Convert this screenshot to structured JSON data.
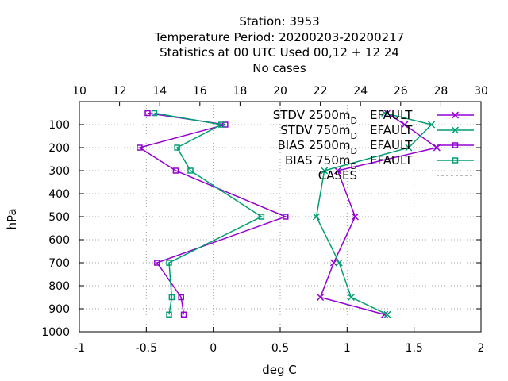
{
  "title_lines": [
    "Station:     3953",
    "Temperature  Period: 20200203-20200217",
    "Statistics at 00 UTC  Used  00,12  + 12 24",
    "No cases"
  ],
  "chart_data": {
    "type": "line",
    "title": "Station:     3953 Temperature  Period: 20200203-20200217 Statistics at 00 UTC  Used  00,12  + 12 24 No cases",
    "xlabel": "deg C",
    "ylabel": "hPa",
    "xlim": [
      -1,
      2
    ],
    "ylim": [
      1000,
      0
    ],
    "x2lim": [
      10,
      30
    ],
    "xticks": [
      -1,
      -0.5,
      0,
      0.5,
      1,
      1.5,
      2
    ],
    "xtick_labels": [
      "-1",
      "-0.5",
      "0",
      "0.5",
      "1",
      "1.5",
      "2"
    ],
    "x2ticks": [
      10,
      12,
      14,
      16,
      18,
      20,
      22,
      24,
      26,
      28,
      30
    ],
    "x2tick_labels": [
      "10",
      "12",
      "14",
      "16",
      "18",
      "20",
      "22",
      "24",
      "26",
      "28",
      "30"
    ],
    "yticks": [
      100,
      200,
      300,
      400,
      500,
      600,
      700,
      800,
      900,
      1000
    ],
    "ytick_labels": [
      "100",
      "200",
      "300",
      "400",
      "500",
      "600",
      "700",
      "800",
      "900",
      "1000"
    ],
    "grid": true,
    "legend_position": "top-right",
    "levels": [
      50,
      100,
      200,
      300,
      500,
      700,
      850,
      925
    ],
    "series": [
      {
        "name": "STDV 2500m DEFAULT",
        "legend_main": "STDV 2500m",
        "legend_sub": "D",
        "legend_tail": "EFAULT",
        "color": "#9400d3",
        "marker": "x",
        "values": [
          1.3,
          1.43,
          1.67,
          0.93,
          1.06,
          0.9,
          0.8,
          1.28
        ]
      },
      {
        "name": "STDV 750m DEFAULT",
        "legend_main": "STDV 750m",
        "legend_sub": "D",
        "legend_tail": "EFAULT",
        "color": "#009e73",
        "marker": "x",
        "values": [
          1.28,
          1.63,
          1.46,
          0.83,
          0.77,
          0.94,
          1.03,
          1.3
        ]
      },
      {
        "name": "BIAS 2500m DEFAULT",
        "legend_main": "BIAS 2500m",
        "legend_sub": "D",
        "legend_tail": "EFAULT",
        "color": "#9400d3",
        "marker": "square",
        "values": [
          -0.49,
          0.09,
          -0.55,
          -0.28,
          0.54,
          -0.42,
          -0.24,
          -0.22
        ]
      },
      {
        "name": "BIAS 750m DEFAULT",
        "legend_main": "BIAS 750m",
        "legend_sub": "D",
        "legend_tail": "EFAULT",
        "color": "#009e73",
        "marker": "square",
        "values": [
          -0.44,
          0.06,
          -0.27,
          -0.17,
          0.36,
          -0.33,
          -0.31,
          -0.33
        ]
      },
      {
        "name": "CASES",
        "legend_main": "CASES",
        "legend_sub": "",
        "legend_tail": "",
        "color": "#a0a0a0",
        "marker": "none",
        "dashed": true,
        "axis": "x2",
        "values": []
      }
    ]
  }
}
